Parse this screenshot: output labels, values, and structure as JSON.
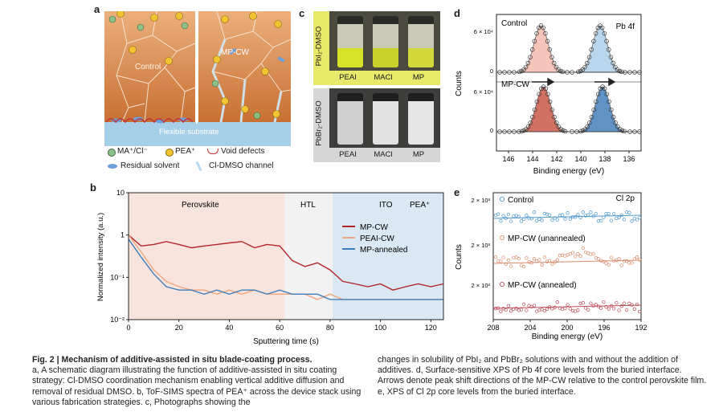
{
  "panels": {
    "a": {
      "label": "a",
      "control_label": "Control",
      "mpcw_label": "MP-CW",
      "substrate_label": "Flexible substrate",
      "legend": {
        "ma_cl": "MA⁺/Cl⁻",
        "pea": "PEA⁺",
        "void": "Void defects",
        "solvent": "Residual solvent",
        "channel": "Cl-DMSO channel"
      },
      "colors": {
        "perovskite": "#d98a4e",
        "substrate": "#9cc7e3",
        "sphere_green": "#8fbf88",
        "sphere_yellow": "#f2c431",
        "void": "#c0353a",
        "solvent": "#6d9fd8"
      }
    },
    "b": {
      "label": "b",
      "region_labels": [
        "Perovskite",
        "HTL",
        "ITO",
        "PEA⁺"
      ],
      "region_colors": [
        "#f8e4dc",
        "#f2f2f2",
        "#d9e8f2"
      ],
      "chart_data": {
        "type": "line",
        "xlabel": "Sputtering time (s)",
        "ylabel": "Normalized intensity (a.u.)",
        "xlim": [
          0,
          125
        ],
        "ylim_log": [
          0.01,
          10
        ],
        "xticks": [
          "0",
          "20",
          "40",
          "60",
          "80",
          "100",
          "120"
        ],
        "yticks": [
          "10",
          "1",
          "10⁻¹",
          "10⁻²"
        ],
        "regions": [
          {
            "name": "Perovskite",
            "x": [
              0,
              62
            ]
          },
          {
            "name": "HTL",
            "x": [
              62,
              81
            ]
          },
          {
            "name": "ITO",
            "x": [
              81,
              125
            ]
          }
        ],
        "series": [
          {
            "name": "MP-CW",
            "color": "#b3252b",
            "x": [
              0,
              5,
              10,
              15,
              20,
              25,
              30,
              35,
              40,
              45,
              50,
              55,
              60,
              65,
              70,
              75,
              80,
              85,
              90,
              95,
              100,
              105,
              110,
              115,
              120,
              125
            ],
            "values": [
              1.0,
              0.55,
              0.6,
              0.7,
              0.6,
              0.5,
              0.55,
              0.6,
              0.65,
              0.7,
              0.5,
              0.6,
              0.55,
              0.25,
              0.18,
              0.22,
              0.15,
              0.08,
              0.07,
              0.06,
              0.07,
              0.05,
              0.06,
              0.07,
              0.06,
              0.07
            ]
          },
          {
            "name": "PEAI-CW",
            "color": "#f0a67e",
            "x": [
              0,
              5,
              10,
              15,
              20,
              25,
              30,
              35,
              40,
              45,
              50,
              55,
              60,
              65,
              70,
              75,
              80,
              85,
              90,
              95,
              100,
              105,
              110,
              115,
              120,
              125
            ],
            "values": [
              1.0,
              0.4,
              0.15,
              0.08,
              0.06,
              0.05,
              0.05,
              0.04,
              0.05,
              0.04,
              0.05,
              0.04,
              0.04,
              0.04,
              0.04,
              0.03,
              0.04,
              0.03,
              0.03,
              0.03,
              0.03,
              0.03,
              0.03,
              0.03,
              0.03,
              0.03
            ]
          },
          {
            "name": "MP-annealed",
            "color": "#3f7fbd",
            "x": [
              0,
              5,
              10,
              15,
              20,
              25,
              30,
              35,
              40,
              45,
              50,
              55,
              60,
              65,
              70,
              75,
              80,
              85,
              90,
              95,
              100,
              105,
              110,
              115,
              120,
              125
            ],
            "values": [
              0.8,
              0.3,
              0.12,
              0.06,
              0.05,
              0.05,
              0.04,
              0.05,
              0.04,
              0.05,
              0.05,
              0.04,
              0.05,
              0.04,
              0.04,
              0.04,
              0.03,
              0.03,
              0.03,
              0.03,
              0.03,
              0.03,
              0.03,
              0.03,
              0.03,
              0.03
            ]
          }
        ]
      }
    },
    "c": {
      "label": "c",
      "row1_label": "PbI₂-DMSO",
      "row2_label": "PbBr₂-DMSO",
      "row1_bg": "#e8e86b",
      "row2_bg": "#d6d6d6",
      "vial_labels": [
        "PEAI",
        "MACl",
        "MP"
      ],
      "row1_liquid": [
        "#d8e22a",
        "#c8d22a",
        "#d4d83a"
      ],
      "row2_liquid": [
        "#e6e6e6",
        "#ececec",
        "#eeeeee"
      ]
    },
    "d": {
      "label": "d",
      "chart_data": {
        "type": "line",
        "title": "Pb 4f",
        "xlabel": "Binding energy (eV)",
        "ylabel": "Counts",
        "xlim": [
          147,
          135
        ],
        "xticks": [
          "146",
          "144",
          "142",
          "140",
          "138",
          "136"
        ],
        "yticks_top": [
          "6 × 10⁴",
          "0"
        ],
        "yticks_bottom": [
          "6 × 10⁴",
          "0"
        ],
        "annotations": [
          "Control",
          "MP-CW"
        ],
        "series": [
          {
            "name": "Control",
            "peaks_eV": [
              143.3,
              138.4
            ],
            "peak_colors": [
              "#f3b7a8",
              "#a9cde8"
            ]
          },
          {
            "name": "MP-CW",
            "peaks_eV": [
              143.1,
              138.2
            ],
            "peak_colors": [
              "#c8503e",
              "#3c79b8"
            ]
          }
        ]
      }
    },
    "e": {
      "label": "e",
      "chart_data": {
        "type": "scatter",
        "title": "Cl 2p",
        "xlabel": "Binding energy (eV)",
        "ylabel": "Counts",
        "xlim": [
          208,
          192
        ],
        "xticks": [
          "208",
          "204",
          "200",
          "196",
          "192"
        ],
        "ytick_label": "2 × 10³",
        "series": [
          {
            "name": "Control",
            "color": "#4c97c9"
          },
          {
            "name": "MP-CW (unannealed)",
            "color": "#d98a6b"
          },
          {
            "name": "MP-CW (annealed)",
            "color": "#b84a56"
          }
        ]
      }
    }
  },
  "caption": {
    "title": "Fig. 2 | Mechanism of additive-assisted in situ blade-coating process.",
    "left_text": "a, A schematic diagram illustrating the function of additive-assisted in situ coating strategy: Cl-DMSO coordination mechanism enabling vertical additive diffusion and removal of residual DMSO. b, ToF-SIMS spectra of PEA⁺ across the device stack using various fabrication strategies. c, Photographs showing the",
    "right_text": "changes in solubility of PbI₂ and PbBr₂ solutions with and without the addition of additives. d, Surface-sensitive XPS of Pb 4f core levels from the buried interface. Arrows denote peak shift directions of the MP-CW relative to the control perovskite film. e, XPS of Cl 2p core levels from the buried interface."
  }
}
